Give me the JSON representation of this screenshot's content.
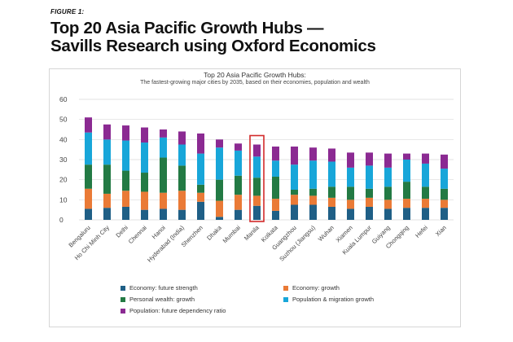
{
  "header": {
    "figure_label": "FIGURE 1:",
    "title_line1": "Top 20 Asia Pacific Growth Hubs —",
    "title_line2": "Savills Research using Oxford Economics"
  },
  "chart_data": {
    "type": "bar",
    "stacked": true,
    "title": "Top 20 Asia Pacific Growth Hubs:",
    "subtitle": "The fastest-growing major cities by 2035, based on their economies, population and wealth",
    "categories": [
      "Bengaluru",
      "Ho Chi Minh City",
      "Delhi",
      "Chennai",
      "Hanoi",
      "Hyderabad (India)",
      "Shenzhen",
      "Dhaka",
      "Mumbai",
      "Manila",
      "Kolkata",
      "Guangzhou",
      "Suzhou (Jiangsu)",
      "Wuhan",
      "Xiamen",
      "Kuala Lumpur",
      "Guiyang",
      "Chongqing",
      "Hefei",
      "Xian"
    ],
    "highlighted_category": "Manila",
    "ylim": [
      0,
      60
    ],
    "yticks": [
      0,
      10,
      20,
      30,
      40,
      50,
      60
    ],
    "grid": true,
    "legend_position": "bottom",
    "series": [
      {
        "name": "Economy: future strength",
        "color": "#1f5f86",
        "values": [
          5.5,
          6.0,
          6.5,
          5.0,
          5.5,
          5.0,
          9.0,
          1.5,
          5.0,
          7.0,
          4.5,
          7.5,
          7.5,
          6.5,
          5.5,
          6.5,
          5.5,
          6.0,
          6.0,
          6.0
        ]
      },
      {
        "name": "Economy: growth",
        "color": "#ea7a36",
        "values": [
          10.0,
          7.0,
          8.0,
          9.0,
          8.0,
          9.5,
          4.5,
          8.0,
          7.5,
          5.0,
          6.0,
          5.0,
          4.5,
          4.5,
          4.5,
          4.5,
          4.5,
          4.5,
          4.5,
          4.0
        ]
      },
      {
        "name": "Personal wealth: growth",
        "color": "#237a44",
        "values": [
          12.0,
          14.5,
          10.0,
          9.5,
          17.5,
          12.5,
          4.0,
          10.5,
          9.5,
          9.0,
          11.0,
          2.5,
          3.5,
          5.5,
          6.5,
          4.5,
          6.5,
          8.5,
          6.0,
          5.5
        ]
      },
      {
        "name": "Population & migration growth",
        "color": "#18a6d9",
        "values": [
          16.0,
          12.5,
          15.0,
          15.0,
          10.0,
          10.5,
          15.5,
          16.0,
          12.5,
          10.5,
          8.0,
          12.5,
          14.0,
          12.5,
          9.5,
          11.5,
          9.5,
          11.0,
          11.5,
          10.0
        ]
      },
      {
        "name": "Population: future dependency ratio",
        "color": "#8b2a92",
        "values": [
          7.5,
          7.5,
          7.5,
          7.5,
          4.0,
          6.5,
          10.0,
          4.0,
          3.5,
          6.0,
          7.0,
          9.0,
          6.5,
          6.5,
          7.5,
          6.5,
          7.0,
          3.0,
          5.0,
          7.0
        ]
      }
    ]
  }
}
